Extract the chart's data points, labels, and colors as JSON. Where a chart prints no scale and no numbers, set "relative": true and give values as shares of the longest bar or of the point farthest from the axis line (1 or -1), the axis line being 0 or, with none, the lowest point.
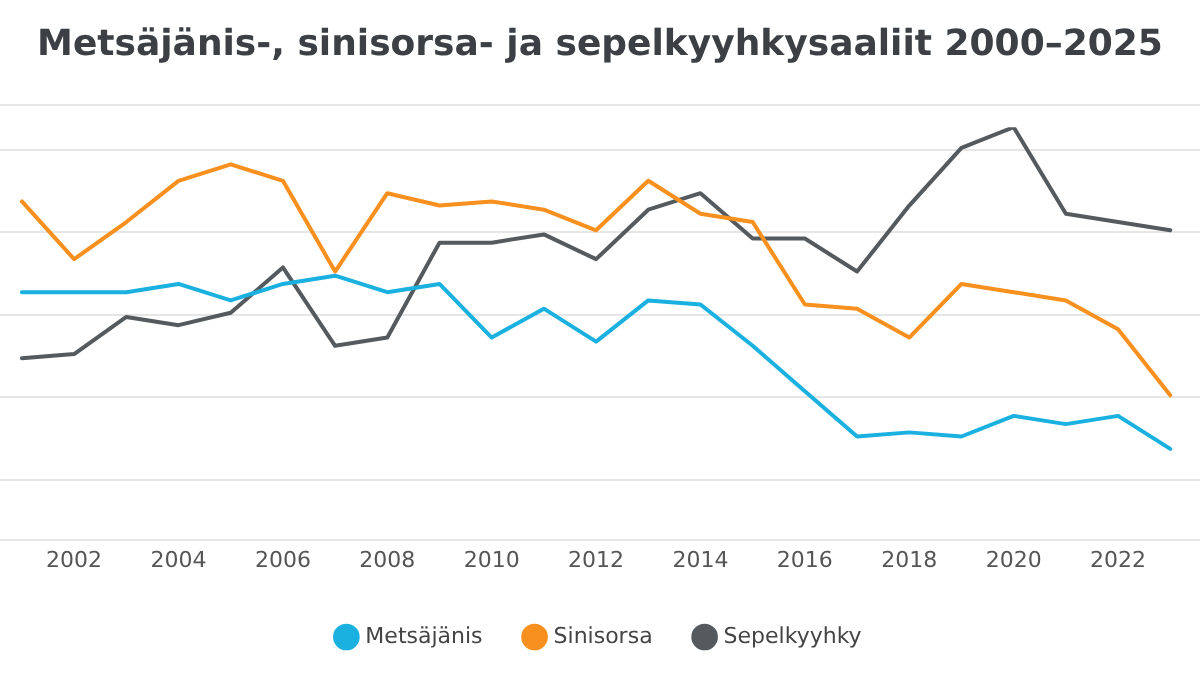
{
  "chart_data": {
    "type": "line",
    "title": "Metsäjänis-, sinisorsa- ja sepelkyyhkysaaliit 2000–2025",
    "relative": true,
    "x": [
      2001,
      2002,
      2003,
      2004,
      2005,
      2006,
      2007,
      2008,
      2009,
      2010,
      2011,
      2012,
      2013,
      2014,
      2015,
      2016,
      2017,
      2018,
      2019,
      2020,
      2021,
      2022,
      2023
    ],
    "xlim": [
      2000.58,
      2023.57
    ],
    "xticks": [
      2002,
      2004,
      2006,
      2008,
      2010,
      2012,
      2014,
      2016,
      2018,
      2020,
      2022
    ],
    "series": [
      {
        "name": "Metsäjänis",
        "color": "#1ab0e0",
        "values": [
          0.6,
          0.6,
          0.6,
          0.62,
          0.58,
          0.62,
          0.64,
          0.6,
          0.62,
          0.49,
          0.56,
          0.48,
          0.58,
          0.57,
          0.47,
          0.36,
          0.25,
          0.26,
          0.25,
          0.3,
          0.28,
          0.3,
          0.22
        ]
      },
      {
        "name": "Sinisorsa",
        "color": "#f7901e",
        "values": [
          0.82,
          0.68,
          0.77,
          0.87,
          0.91,
          0.87,
          0.65,
          0.84,
          0.81,
          0.82,
          0.8,
          0.75,
          0.87,
          0.79,
          0.77,
          0.57,
          0.56,
          0.49,
          0.62,
          0.6,
          0.58,
          0.51,
          0.35
        ]
      },
      {
        "name": "Sepelkyyhky",
        "color": "#555a5e",
        "values": [
          0.44,
          0.45,
          0.54,
          0.52,
          0.55,
          0.66,
          0.47,
          0.49,
          0.72,
          0.72,
          0.74,
          0.68,
          0.8,
          0.84,
          0.73,
          0.73,
          0.65,
          0.81,
          0.95,
          1,
          0.79,
          0.77,
          0.75
        ]
      }
    ],
    "grid": "y",
    "legend": "bottom",
    "marker": "none",
    "line_style": "solid"
  }
}
